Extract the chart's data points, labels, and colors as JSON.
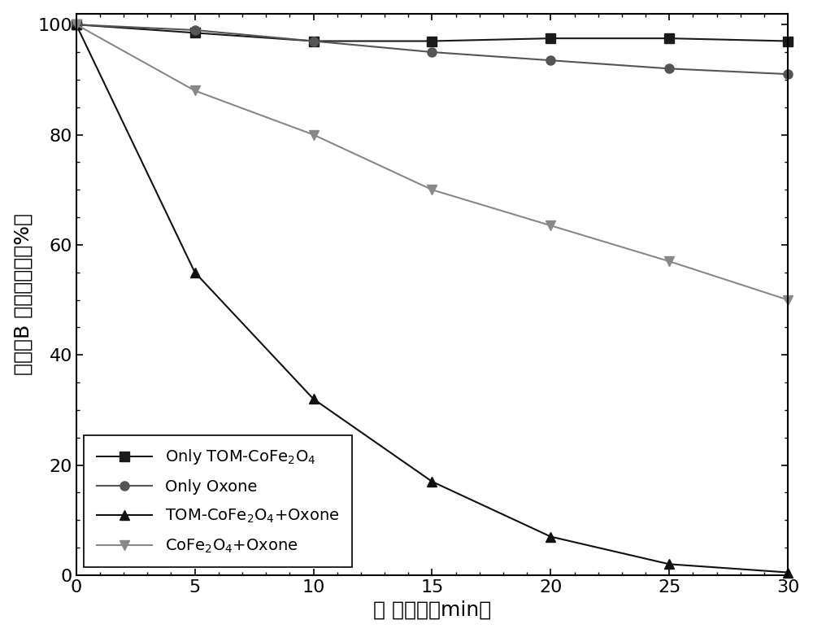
{
  "x": [
    0,
    5,
    10,
    15,
    20,
    25,
    30
  ],
  "series": [
    {
      "label_parts": [
        "Only TOM-CoFe",
        "2",
        "O",
        "4"
      ],
      "label_template": "Only TOM-CoFe$_2$O$_4$",
      "y": [
        100,
        98.5,
        97,
        97,
        97.5,
        97.5,
        97
      ],
      "color": "#1a1a1a",
      "marker": "s",
      "marker_size": 8,
      "linewidth": 1.5,
      "linestyle": "-"
    },
    {
      "label_parts": [
        "Only Oxone"
      ],
      "label_template": "Only Oxone",
      "y": [
        100,
        99,
        97,
        95,
        93.5,
        92,
        91
      ],
      "color": "#555555",
      "marker": "o",
      "marker_size": 8,
      "linewidth": 1.5,
      "linestyle": "-"
    },
    {
      "label_parts": [
        "TOM-CoFe",
        "2",
        "O",
        "4",
        "+Oxone"
      ],
      "label_template": "TOM-CoFe$_2$O$_4$+Oxone",
      "y": [
        100,
        55,
        32,
        17,
        7,
        2,
        0.5
      ],
      "color": "#111111",
      "marker": "^",
      "marker_size": 9,
      "linewidth": 1.5,
      "linestyle": "-"
    },
    {
      "label_parts": [
        "CoFe",
        "2",
        "O",
        "4",
        "+Oxone"
      ],
      "label_template": "CoFe$_2$O$_4$+Oxone",
      "y": [
        100,
        88,
        80,
        70,
        63.5,
        57,
        50
      ],
      "color": "#888888",
      "marker": "v",
      "marker_size": 9,
      "linewidth": 1.5,
      "linestyle": "-"
    }
  ],
  "xlabel": "反 应时间（min）",
  "ylabel_line1": "罗丹明B 剩余百分比（%）",
  "xlim": [
    0,
    30
  ],
  "ylim": [
    0,
    102
  ],
  "xticks": [
    0,
    5,
    10,
    15,
    20,
    25,
    30
  ],
  "yticks": [
    0,
    20,
    40,
    60,
    80,
    100
  ],
  "legend_loc": "lower left",
  "background_color": "#ffffff",
  "axis_fontsize": 18,
  "tick_fontsize": 16,
  "legend_fontsize": 14
}
